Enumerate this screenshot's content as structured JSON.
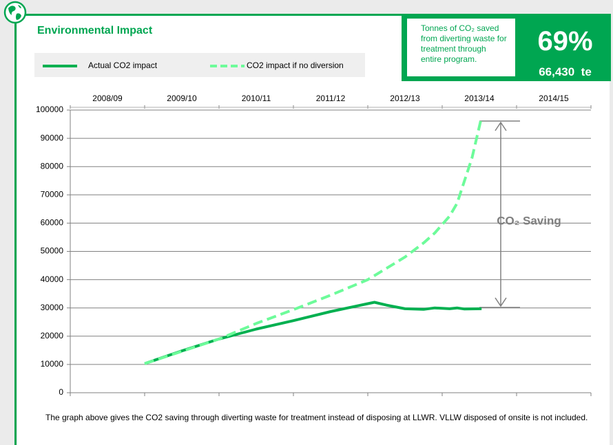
{
  "chart_data": {
    "type": "line",
    "title": "Environmental Impact",
    "categories": [
      "2008/09",
      "2009/10",
      "2010/11",
      "2011/12",
      "2012/13",
      "2013/14",
      "2014/15"
    ],
    "xlim": [
      0,
      7
    ],
    "xticks": [
      0,
      1,
      2,
      3,
      4,
      5,
      6,
      7
    ],
    "ylim": [
      0,
      100000
    ],
    "yticks": [
      0,
      10000,
      20000,
      30000,
      40000,
      50000,
      60000,
      70000,
      80000,
      90000,
      100000
    ],
    "grid": true,
    "series": [
      {
        "name": "Actual CO2 impact",
        "color": "#00b050",
        "dashed": false,
        "x": [
          1.0,
          1.5,
          2.0,
          2.5,
          3.0,
          3.5,
          4.0,
          4.09,
          4.25,
          4.5,
          4.75,
          4.9,
          5.1,
          5.2,
          5.3,
          5.53
        ],
        "values": [
          10300,
          14800,
          19000,
          22500,
          25500,
          28700,
          31500,
          32000,
          31000,
          29700,
          29500,
          30000,
          29700,
          30000,
          29600,
          29700
        ]
      },
      {
        "name": "CO2 impact if no diversion",
        "color": "#6dfb9a",
        "dashed": true,
        "x": [
          1.0,
          2.0,
          2.5,
          3.0,
          3.5,
          4.0,
          4.25,
          4.5,
          4.75,
          4.9,
          5.1,
          5.2,
          5.3,
          5.4,
          5.52
        ],
        "values": [
          10300,
          19000,
          24500,
          29400,
          34500,
          40000,
          44000,
          48000,
          53000,
          56500,
          62500,
          67000,
          75000,
          83000,
          96500
        ]
      }
    ],
    "annotation": "CO₂ Saving"
  },
  "summary": {
    "text": "Tonnes of CO₂ saved from diverting waste for treatment through entire program.",
    "percent": "69%",
    "tonnes": "66,430  te"
  },
  "footer": "The graph above gives the CO2 saving through diverting waste for treatment instead of disposing at LLWR. VLLW disposed of onsite is not included."
}
